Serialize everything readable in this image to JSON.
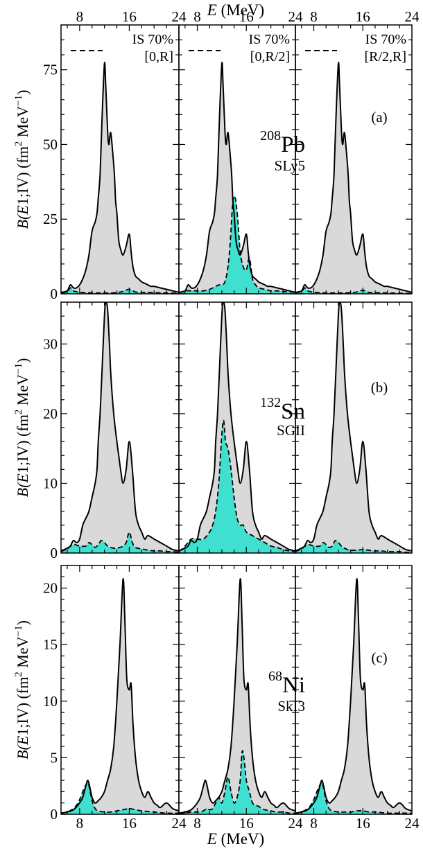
{
  "chart_data": {
    "type": "area",
    "x_axis": {
      "label_symbol": "E",
      "label_unit": "(MeV)",
      "range": [
        5,
        24
      ],
      "ticks": [
        8,
        16,
        24
      ],
      "tick_labels": [
        "8",
        "16",
        "24"
      ],
      "top_tick_labels": [
        "8",
        "16",
        "24"
      ]
    },
    "y_axis_label": {
      "prefix": "B(",
      "symbol": "E",
      "mid": "1;IV)",
      "units": "(fm",
      "units_sup": "2",
      "units_mev": "MeV",
      "units_mev_sup": "−1",
      "units_close": ")"
    },
    "legend_label": "IS 70%",
    "column_intervals": [
      "[0,R]",
      "[0,R/2]",
      "[R/2,R]"
    ],
    "rows": [
      {
        "panel_label": "(a)",
        "nucleus_mass": "208",
        "nucleus_symbol": "Pb",
        "force": "SLy5",
        "y_range": [
          0,
          90
        ],
        "y_ticks": [
          0,
          25,
          50,
          75
        ],
        "y_tick_labels": [
          "0",
          "25",
          "50",
          "75"
        ],
        "total": {
          "x": [
            5,
            6,
            6.5,
            7,
            7.5,
            8,
            8.5,
            9,
            9.5,
            10,
            10.5,
            10.8,
            11,
            11.3,
            11.6,
            12,
            12.2,
            12.5,
            12.7,
            13,
            13.3,
            13.6,
            13.8,
            14,
            14.3,
            14.6,
            15,
            15.5,
            16,
            16.3,
            16.6,
            17,
            17.5,
            18,
            18.5,
            19,
            19.5,
            20,
            21,
            22,
            23,
            24
          ],
          "y": [
            0.5,
            1,
            3,
            2,
            2,
            3,
            5,
            8,
            13,
            21,
            24,
            27,
            32,
            40,
            58,
            77,
            70,
            55,
            50,
            54,
            48,
            40,
            31,
            27,
            18,
            15,
            13,
            16,
            20,
            14,
            9,
            6,
            5,
            4,
            3.5,
            3,
            2.5,
            2.5,
            2,
            1.5,
            1,
            0.5
          ]
        },
        "is70_by_column": [
          {
            "x": [
              5,
              6,
              6.5,
              7,
              7.5,
              8,
              9,
              10,
              11,
              12,
              13,
              14,
              15,
              16,
              17,
              18,
              20,
              22,
              24
            ],
            "y": [
              0.3,
              0.8,
              2,
              1,
              0.7,
              0.5,
              0.4,
              0.3,
              0.3,
              0.3,
              0.3,
              0.4,
              0.8,
              1.5,
              0.6,
              0.5,
              0.4,
              0.3,
              0.2
            ]
          },
          {
            "x": [
              5,
              6,
              7,
              8,
              9,
              10,
              11,
              11.5,
              12,
              12.5,
              13,
              13.4,
              13.8,
              14.2,
              14.6,
              15,
              15.5,
              16,
              16.5,
              17,
              17.5,
              18,
              19,
              20,
              21,
              22,
              24
            ],
            "y": [
              0.3,
              1,
              1,
              1,
              1,
              1.5,
              2.5,
              3,
              3,
              4,
              9,
              18,
              31,
              32,
              25,
              14,
              9,
              8,
              12,
              5,
              3,
              2,
              1.5,
              1,
              1,
              0.8,
              0.5
            ]
          },
          {
            "x": [
              5,
              6,
              6.5,
              7,
              7.5,
              8,
              9,
              10,
              11,
              12,
              13,
              14,
              15,
              16,
              17,
              18,
              20,
              22,
              24
            ],
            "y": [
              0.3,
              0.8,
              2,
              1,
              0.7,
              0.5,
              0.4,
              0.3,
              0.3,
              0.3,
              0.3,
              0.4,
              0.6,
              1.2,
              0.5,
              0.4,
              0.3,
              0.2,
              0.1
            ]
          }
        ]
      },
      {
        "panel_label": "(b)",
        "nucleus_mass": "132",
        "nucleus_symbol": "Sn",
        "force": "SGII",
        "y_range": [
          0,
          36
        ],
        "y_ticks": [
          0,
          10,
          20,
          30
        ],
        "y_tick_labels": [
          "0",
          "10",
          "20",
          "30"
        ],
        "total": {
          "x": [
            5,
            6,
            6.5,
            7,
            7.5,
            8,
            8.5,
            9,
            9.5,
            10,
            10.5,
            10.8,
            11,
            11.3,
            11.6,
            12,
            12.2,
            12.5,
            12.8,
            13,
            13.3,
            13.6,
            14,
            14.3,
            14.6,
            15,
            15.5,
            16,
            16.5,
            17,
            17.5,
            18,
            18.5,
            19,
            20,
            21,
            22,
            23,
            24
          ],
          "y": [
            0.3,
            0.7,
            1,
            1.8,
            1.5,
            2,
            4,
            5,
            6,
            8,
            10,
            12,
            16,
            20,
            26,
            34,
            36,
            35,
            30,
            26,
            22,
            19,
            16,
            14,
            12,
            10,
            12,
            16,
            12,
            6,
            4,
            3,
            2,
            2.5,
            2,
            1.5,
            1,
            0.5,
            0.3
          ]
        },
        "is70_by_column": [
          {
            "x": [
              5,
              6,
              7,
              8,
              9,
              9.5,
              10,
              10.5,
              11,
              11.5,
              12,
              12.5,
              13,
              13.5,
              14,
              14.5,
              15,
              15.5,
              16,
              16.5,
              17,
              18,
              19,
              20,
              21,
              22,
              23,
              24
            ],
            "y": [
              0.2,
              0.6,
              1.2,
              1,
              1,
              1.5,
              1.2,
              0.8,
              1.2,
              1.8,
              1.5,
              1,
              0.8,
              0.7,
              0.7,
              0.8,
              1,
              1.5,
              3,
              1.5,
              0.8,
              0.6,
              0.4,
              0.3,
              0.3,
              0.2,
              0.2,
              0.1
            ]
          },
          {
            "x": [
              5,
              6,
              7,
              8,
              9,
              10,
              10.5,
              11,
              11.5,
              12,
              12.3,
              12.6,
              13,
              13.5,
              14,
              14.5,
              15,
              15.5,
              16,
              17,
              18,
              19,
              20,
              21,
              22,
              23,
              24
            ],
            "y": [
              0.2,
              1,
              2,
              2,
              2,
              3,
              4,
              6,
              10,
              17,
              19,
              16,
              15,
              12,
              8,
              5,
              4,
              4,
              3,
              2.5,
              2,
              1.5,
              1,
              0.8,
              0.5,
              0.3,
              0.2
            ]
          },
          {
            "x": [
              5,
              6,
              7,
              8,
              9,
              9.5,
              10,
              10.5,
              11,
              11.5,
              12,
              12.5,
              13,
              13.5,
              14,
              15,
              16,
              17,
              18,
              19,
              20,
              21,
              22,
              23,
              24
            ],
            "y": [
              0.2,
              0.6,
              1.2,
              1,
              1,
              1.5,
              1.2,
              0.8,
              1,
              1.8,
              1.5,
              1,
              0.7,
              0.5,
              0.4,
              0.4,
              0.5,
              0.4,
              0.3,
              0.3,
              0.2,
              0.2,
              0.2,
              0.1,
              0.1
            ]
          }
        ]
      },
      {
        "panel_label": "(c)",
        "nucleus_mass": "68",
        "nucleus_symbol": "Ni",
        "force": "SkI3",
        "y_range": [
          0,
          22
        ],
        "y_ticks": [
          0,
          5,
          10,
          15,
          20
        ],
        "y_tick_labels": [
          "0",
          "5",
          "10",
          "15",
          "20"
        ],
        "total": {
          "x": [
            5,
            6,
            7,
            8,
            8.5,
            9,
            9.3,
            9.6,
            10,
            10.5,
            11,
            11.5,
            12,
            12.5,
            13,
            13.5,
            14,
            14.5,
            15,
            15.3,
            15.6,
            16,
            16.3,
            16.6,
            17,
            17.5,
            18,
            18.5,
            19,
            19.5,
            20,
            20.5,
            21,
            22,
            23,
            24
          ],
          "y": [
            0.1,
            0.2,
            0.4,
            1,
            1.5,
            2.5,
            3,
            2.5,
            1.5,
            1,
            1.2,
            1.5,
            2,
            3,
            4,
            6,
            10,
            15,
            20.8,
            17,
            12,
            11,
            11.5,
            8,
            5,
            3,
            2,
            1.5,
            2,
            1.5,
            1,
            0.8,
            0.6,
            1,
            0.5,
            0.3
          ]
        },
        "is70_by_column": [
          {
            "x": [
              5,
              6,
              7,
              7.5,
              8,
              8.5,
              9,
              9.3,
              9.6,
              10,
              10.5,
              11,
              12,
              13,
              14,
              15,
              16,
              17,
              18,
              20,
              22,
              24
            ],
            "y": [
              0.1,
              0.2,
              0.5,
              0.8,
              1.3,
              2,
              2.6,
              2.8,
              2.3,
              1.2,
              0.5,
              0.3,
              0.2,
              0.2,
              0.3,
              0.4,
              0.5,
              0.4,
              0.3,
              0.2,
              0.1,
              0.1
            ]
          },
          {
            "x": [
              5,
              6,
              7,
              8,
              9,
              9.5,
              10,
              10.5,
              11,
              11.5,
              12,
              12.5,
              13,
              13.5,
              14,
              14.5,
              15,
              15.3,
              15.6,
              16,
              16.5,
              17,
              17.5,
              18,
              18.5,
              19,
              20,
              21,
              22,
              23,
              24
            ],
            "y": [
              0.1,
              0.1,
              0.2,
              0.2,
              0.3,
              0.5,
              0.4,
              0.5,
              1,
              1.5,
              1,
              2,
              3.3,
              2,
              1,
              1.5,
              3,
              5.5,
              5,
              3,
              2,
              1,
              0.8,
              0.7,
              0.5,
              0.4,
              0.3,
              0.2,
              0.2,
              0.1,
              0.1
            ]
          },
          {
            "x": [
              5,
              6,
              7,
              7.5,
              8,
              8.5,
              9,
              9.3,
              9.6,
              10,
              10.5,
              11,
              12,
              13,
              14,
              15,
              16,
              17,
              18,
              20,
              22,
              24
            ],
            "y": [
              0.1,
              0.2,
              0.5,
              0.8,
              1.3,
              2,
              2.6,
              2.8,
              2.3,
              1.2,
              0.5,
              0.3,
              0.2,
              0.2,
              0.2,
              0.3,
              0.3,
              0.2,
              0.2,
              0.1,
              0.1,
              0.1
            ]
          }
        ]
      }
    ],
    "colors": {
      "total_fill": "#d9d9d9",
      "is70_fill": "#40e0d0",
      "line": "#000000"
    }
  }
}
